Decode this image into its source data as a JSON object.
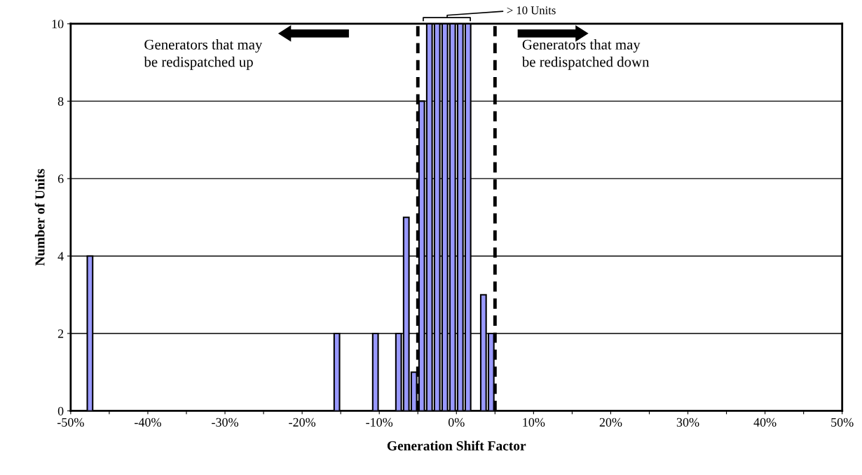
{
  "chart_data": {
    "type": "histogram",
    "xlabel": "Generation Shift Factor",
    "ylabel": "Number of Units",
    "bins": [
      -50,
      -49,
      -48,
      -47,
      -46,
      -45,
      -44,
      -43,
      -42,
      -41,
      -40,
      -39,
      -38,
      -37,
      -36,
      -35,
      -34,
      -33,
      -32,
      -31,
      -30,
      -29,
      -28,
      -27,
      -26,
      -25,
      -24,
      -23,
      -22,
      -21,
      -20,
      -19,
      -18,
      -17,
      -16,
      -15,
      -14,
      -13,
      -12,
      -11,
      -10,
      -9,
      -8,
      -7,
      -6,
      -5,
      -4,
      -3,
      -2,
      -1,
      0,
      1,
      2,
      3,
      4,
      5,
      6,
      7,
      8,
      9,
      10,
      11,
      12,
      13,
      14,
      15,
      16,
      17,
      18,
      19,
      20,
      21,
      22,
      23,
      24,
      25,
      26,
      27,
      28,
      29,
      30,
      31,
      32,
      33,
      34,
      35,
      36,
      37,
      38,
      39,
      40,
      41,
      42,
      43,
      44,
      45,
      46,
      47,
      48,
      49,
      50
    ],
    "values": [
      0,
      0,
      4,
      0,
      0,
      0,
      0,
      0,
      0,
      0,
      0,
      0,
      0,
      0,
      0,
      0,
      0,
      0,
      0,
      0,
      0,
      0,
      0,
      0,
      0,
      0,
      0,
      0,
      0,
      0,
      0,
      0,
      0,
      0,
      2,
      0,
      0,
      0,
      0,
      2,
      0,
      0,
      2,
      5,
      1,
      8,
      10,
      10,
      10,
      10,
      10,
      10,
      0,
      3,
      2,
      0,
      0,
      0,
      0,
      0,
      0,
      0,
      0,
      0,
      0,
      0,
      0,
      0,
      0,
      0,
      0,
      0,
      0,
      0,
      0,
      0,
      0,
      0,
      0,
      0,
      0,
      0,
      0,
      0,
      0,
      0,
      0,
      0,
      0,
      0,
      0,
      0,
      0,
      0,
      0,
      0,
      0,
      0,
      0,
      0
    ],
    "color": "#9999ff",
    "xlim": [
      -50,
      50
    ],
    "xticks": [
      {
        "value": -50,
        "label": "-50%"
      },
      {
        "value": -45,
        "label": null
      },
      {
        "value": -40,
        "label": "-40%"
      },
      {
        "value": -35,
        "label": null
      },
      {
        "value": -30,
        "label": "-30%"
      },
      {
        "value": -25,
        "label": null
      },
      {
        "value": -20,
        "label": "-20%"
      },
      {
        "value": -15,
        "label": null
      },
      {
        "value": -10,
        "label": "-10%"
      },
      {
        "value": -5,
        "label": null
      },
      {
        "value": 0,
        "label": "0%"
      },
      {
        "value": 5,
        "label": null
      },
      {
        "value": 10,
        "label": "10%"
      },
      {
        "value": 15,
        "label": null
      },
      {
        "value": 20,
        "label": "20%"
      },
      {
        "value": 25,
        "label": null
      },
      {
        "value": 30,
        "label": "30%"
      },
      {
        "value": 35,
        "label": null
      },
      {
        "value": 40,
        "label": "40%"
      },
      {
        "value": 45,
        "label": null
      },
      {
        "value": 50,
        "label": "50%"
      }
    ],
    "ylim": [
      0,
      10
    ],
    "yticks": [
      0,
      2,
      4,
      6,
      8,
      10
    ],
    "grid": "y",
    "ref_lines": [
      {
        "axis": "x",
        "value": -5,
        "color": "#000000",
        "line_style": "dashed"
      },
      {
        "axis": "x",
        "value": 5,
        "color": "#000000",
        "line_style": "dashed"
      }
    ],
    "annotations": [
      "Generators that may\nbe redispatched up",
      "Generators that may\nbe redispatched down",
      "> 10 Units"
    ]
  }
}
